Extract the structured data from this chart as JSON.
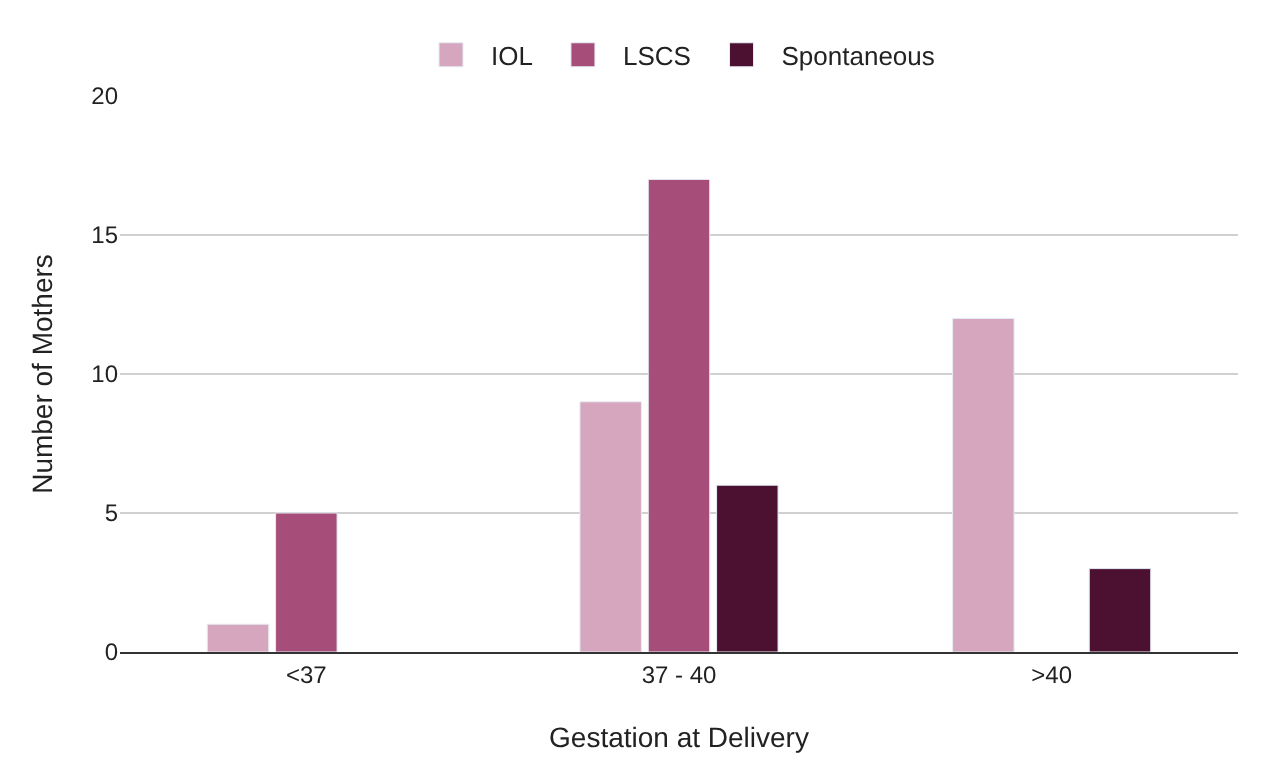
{
  "chart_data": {
    "type": "bar",
    "xlabel": "Gestation at Delivery",
    "ylabel": "Number of Mothers",
    "categories": [
      "<37",
      "37 - 40",
      ">40"
    ],
    "series": [
      {
        "name": "IOL",
        "color": "#d5a6bd",
        "values": [
          1,
          9,
          12
        ]
      },
      {
        "name": "LSCS",
        "color": "#a64d79",
        "values": [
          5,
          17,
          null
        ]
      },
      {
        "name": "Spontaneous",
        "color": "#4c1130",
        "values": [
          null,
          6,
          3
        ]
      }
    ],
    "ylim": [
      0,
      20
    ],
    "yticks": [
      0,
      5,
      10,
      15,
      20
    ],
    "grid": "y",
    "legend": "top"
  }
}
